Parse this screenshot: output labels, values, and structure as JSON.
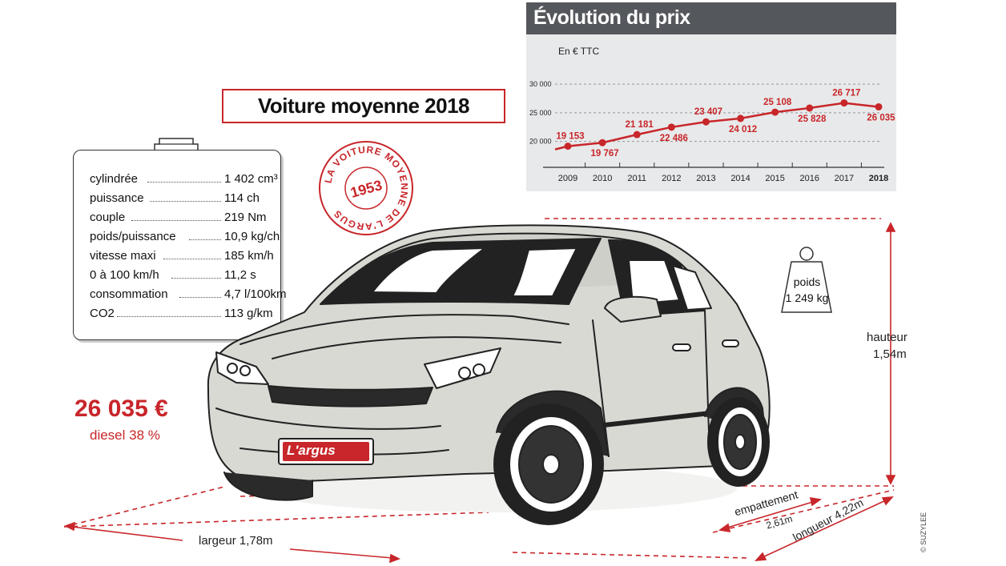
{
  "main_title": "Voiture moyenne 2018",
  "stamp": {
    "text": "LA VOITURE MOYENNE DE L'ARGUS",
    "year": "1953"
  },
  "specs": [
    {
      "label": "cylindrée",
      "value": "1 402 cm³"
    },
    {
      "label": "puissance",
      "value": "114 ch"
    },
    {
      "label": "couple",
      "value": "219 Nm"
    },
    {
      "label": "poids/puissance",
      "value": "10,9 kg/ch"
    },
    {
      "label": "vitesse maxi",
      "value": "185 km/h"
    },
    {
      "label": "0 à 100 km/h",
      "value": "11,2 s"
    },
    {
      "label": "consommation",
      "value": "4,7 l/100km"
    },
    {
      "label": "CO2",
      "value": "113 g/km"
    }
  ],
  "price": "26 035 €",
  "diesel": "diesel 38 %",
  "weight": {
    "label": "poids",
    "value": "1 249 kg"
  },
  "dimensions": {
    "hauteur_label": "hauteur",
    "hauteur_value": "1,54m",
    "largeur": "largeur 1,78m",
    "empattement_label": "empattement",
    "empattement_value": "2,61m",
    "longueur": "longueur 4,22m"
  },
  "plate": "L'argus",
  "credit": "© SUZYLEE",
  "colors": {
    "accent": "#c8262a",
    "header": "#54575b",
    "panel": "#e8e9ea",
    "car_body": "#d9d9d4"
  },
  "chart_data": {
    "type": "line",
    "title": "Évolution du prix",
    "ylabel": "En € TTC",
    "xlabel": "",
    "x": [
      "2009",
      "2010",
      "2011",
      "2012",
      "2013",
      "2014",
      "2015",
      "2016",
      "2017",
      "2018"
    ],
    "values": [
      19153,
      19767,
      21181,
      22486,
      23407,
      24012,
      25108,
      25828,
      26717,
      26035
    ],
    "value_labels": [
      "19 153",
      "19 767",
      "21 181",
      "22 486",
      "23 407",
      "24 012",
      "25 108",
      "25 828",
      "26 717",
      "26 035"
    ],
    "yticks": [
      20000,
      25000,
      30000
    ],
    "ytick_labels": [
      "20 000",
      "25 000",
      "30 000"
    ],
    "ylim": [
      17000,
      31000
    ],
    "grid": true,
    "color": "#c8262a"
  }
}
